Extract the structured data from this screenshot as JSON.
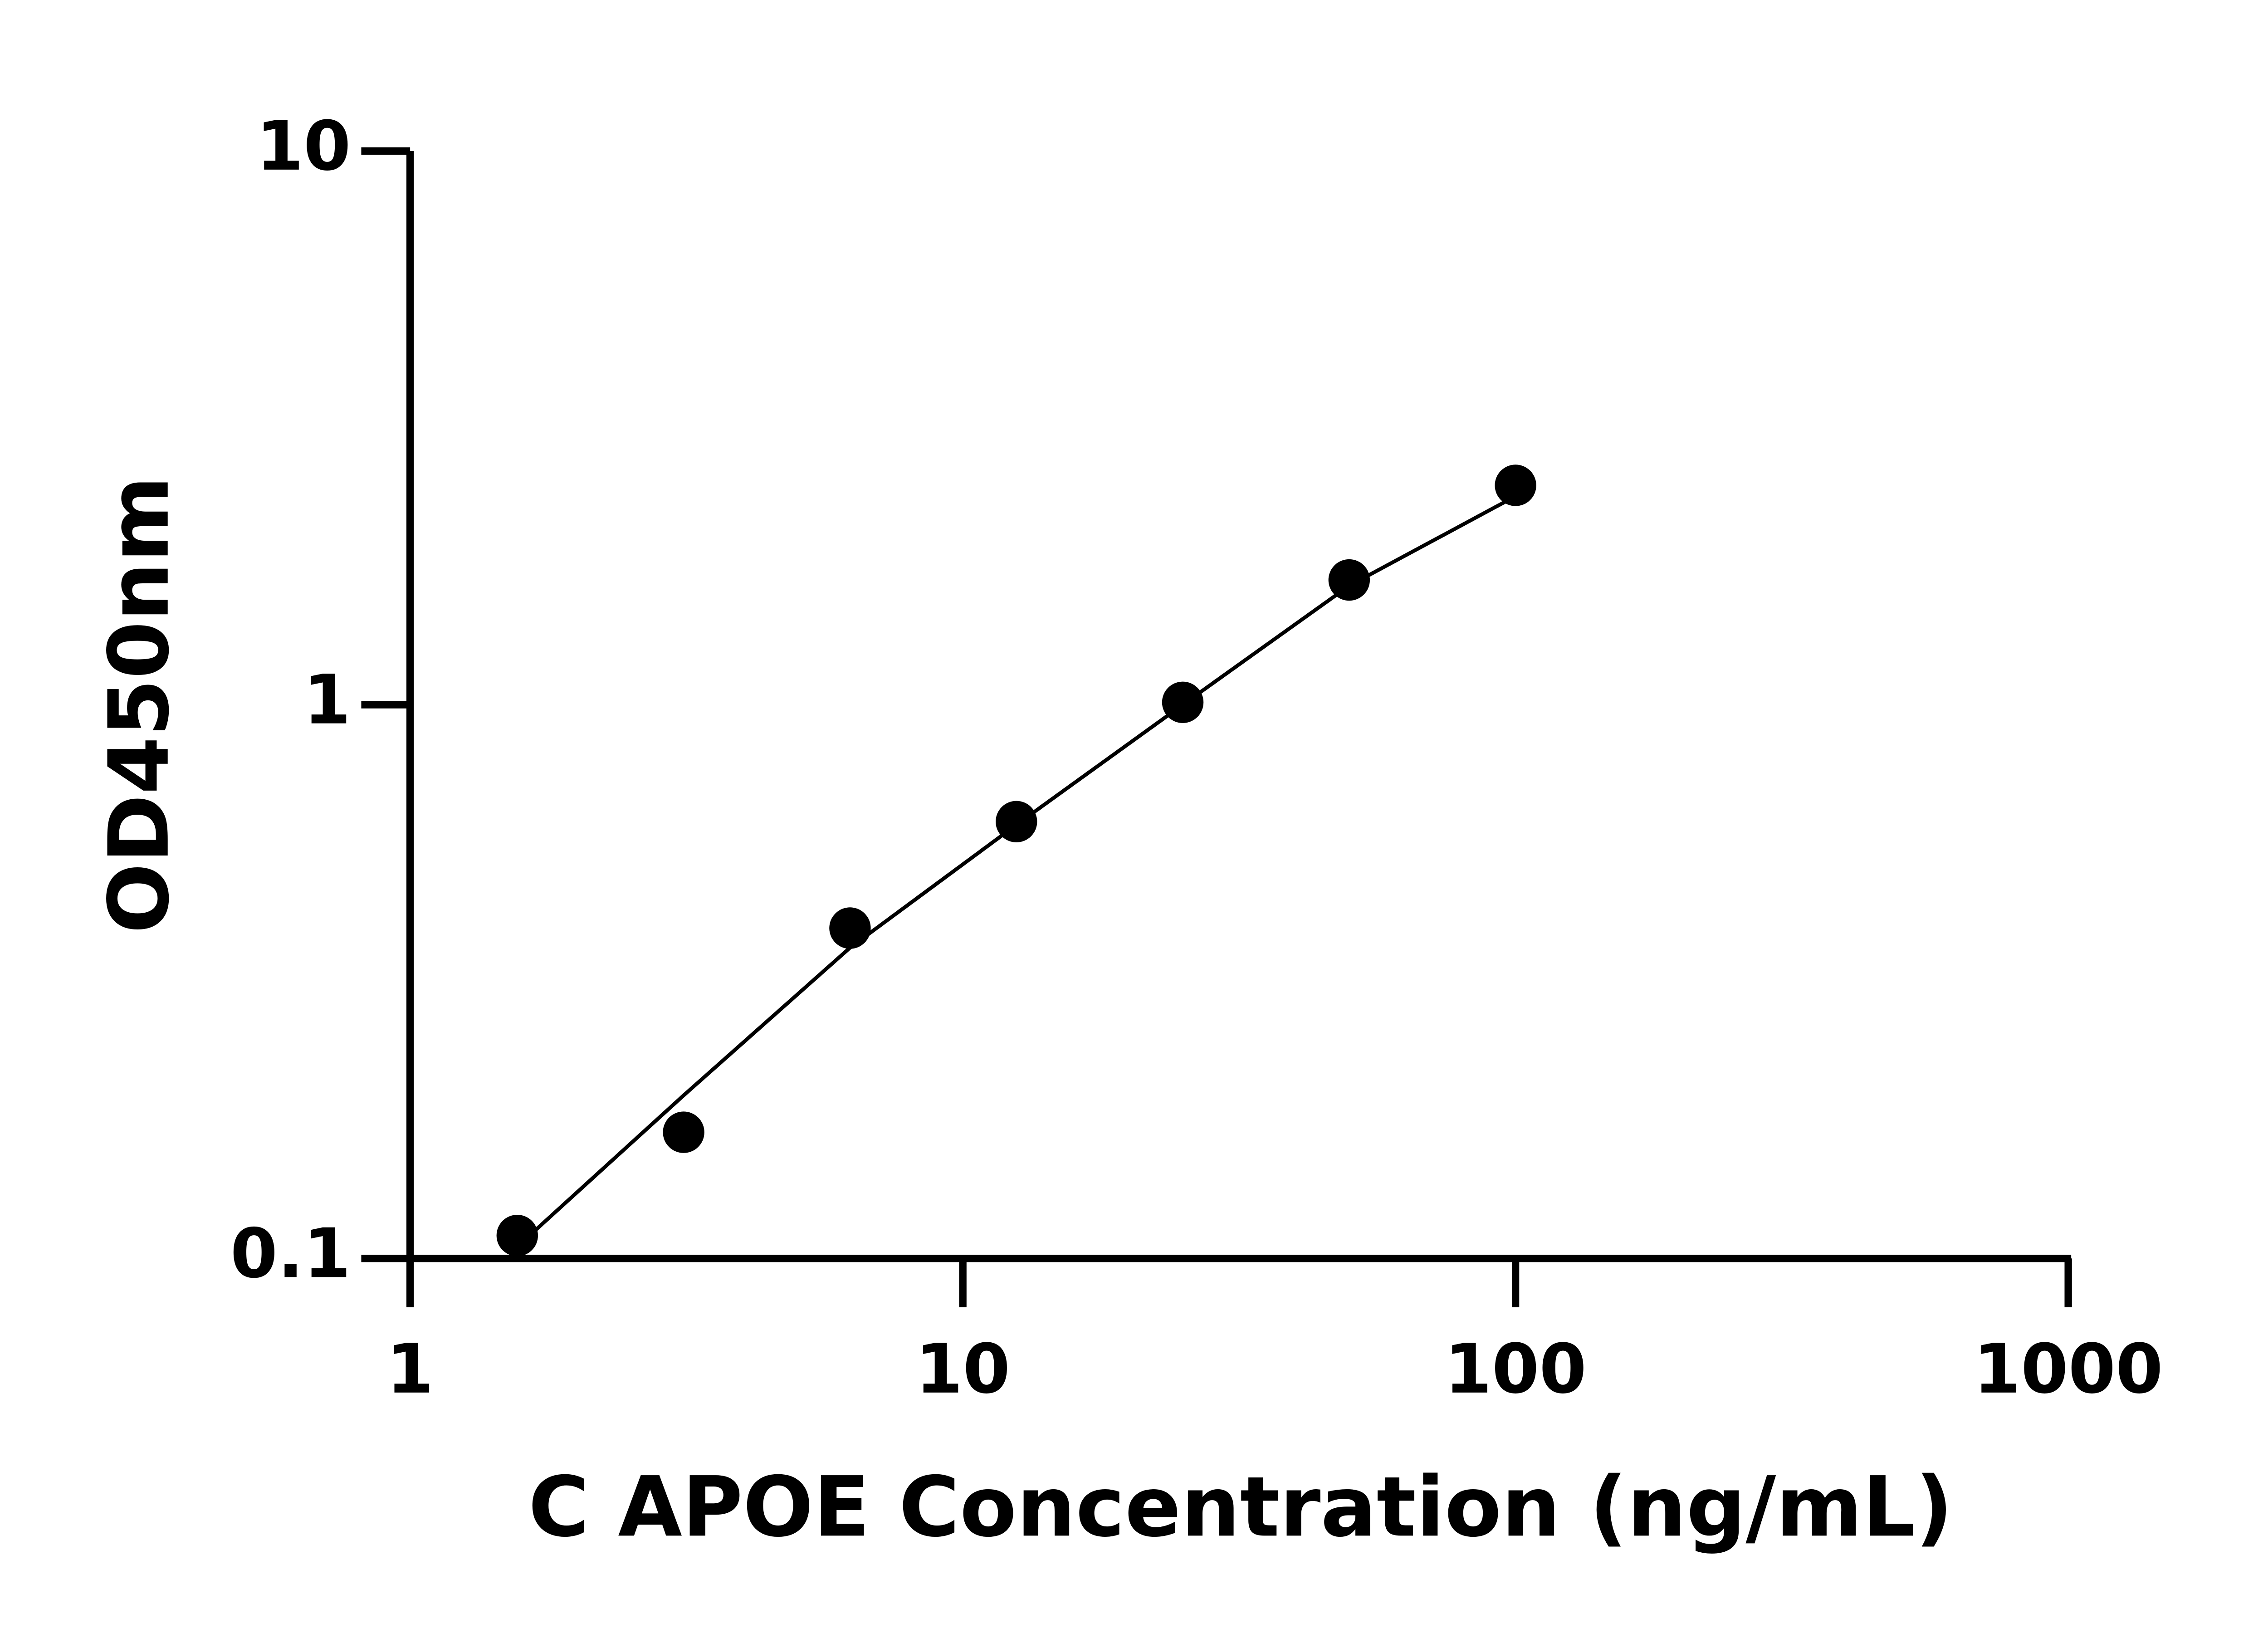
{
  "chart_data": {
    "type": "scatter",
    "x_label": "C APOE Concentration (ng/mL)",
    "y_label": "OD450nm",
    "x": [
      1.5625,
      3.125,
      6.25,
      12.5,
      25,
      50,
      100
    ],
    "series": [
      {
        "color": "#000000",
        "values": [
          0.11,
          0.169,
          0.395,
          0.615,
          1.01,
          1.68,
          2.49
        ]
      }
    ],
    "fit_line": {
      "color": "#000000",
      "x": [
        1.5625,
        3.125,
        6.25,
        12.5,
        25,
        50,
        100
      ],
      "values": [
        0.105,
        0.197,
        0.364,
        0.607,
        1.0,
        1.64,
        2.38
      ]
    },
    "xlim": [
      1,
      1000
    ],
    "ylim": [
      0.1,
      10
    ],
    "xticks": [
      1,
      10,
      100,
      1000
    ],
    "yticks": [
      0.1,
      1,
      10
    ],
    "x_log": true,
    "y_log": true
  }
}
